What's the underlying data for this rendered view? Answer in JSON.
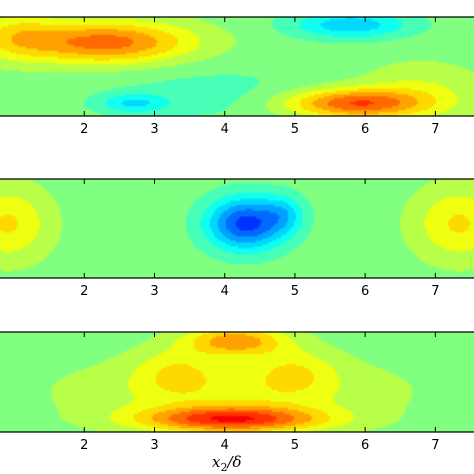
{
  "chart_data": [
    {
      "type": "heatmap",
      "panel": 1,
      "x_ticks": [
        "2",
        "3",
        "4",
        "5",
        "6",
        "7"
      ],
      "x_tick_values": [
        2,
        3,
        4,
        5,
        6,
        7
      ],
      "xlim": [
        0.8,
        7.55
      ],
      "xlabel": "",
      "colormap": "jet",
      "features": [
        {
          "x": 2.3,
          "y": 0.75,
          "value": 0.85,
          "sx": 1.25,
          "sy": 0.22
        },
        {
          "x": 1.0,
          "y": 0.82,
          "value": 0.35,
          "sx": 0.6,
          "sy": 0.25
        },
        {
          "x": 5.85,
          "y": 0.12,
          "value": 0.9,
          "sx": 1.0,
          "sy": 0.15
        },
        {
          "x": 6.8,
          "y": 0.25,
          "value": 0.25,
          "sx": 0.9,
          "sy": 0.3
        },
        {
          "x": 5.8,
          "y": 0.93,
          "value": -0.55,
          "sx": 0.85,
          "sy": 0.14
        },
        {
          "x": 2.7,
          "y": 0.12,
          "value": -0.4,
          "sx": 0.5,
          "sy": 0.1
        },
        {
          "x": 3.8,
          "y": 0.22,
          "value": -0.15,
          "sx": 1.5,
          "sy": 0.3
        }
      ]
    },
    {
      "type": "heatmap",
      "panel": 2,
      "x_ticks": [
        "2",
        "3",
        "4",
        "5",
        "6",
        "7"
      ],
      "x_tick_values": [
        2,
        3,
        4,
        5,
        6,
        7
      ],
      "xlim": [
        0.8,
        7.55
      ],
      "xlabel": "",
      "colormap": "jet",
      "features": [
        {
          "x": 4.3,
          "y": 0.55,
          "value": -1.0,
          "sx": 0.55,
          "sy": 0.27
        },
        {
          "x": 4.85,
          "y": 0.65,
          "value": -0.35,
          "sx": 0.3,
          "sy": 0.2
        },
        {
          "x": 0.9,
          "y": 0.55,
          "value": 0.45,
          "sx": 0.6,
          "sy": 0.38
        },
        {
          "x": 7.35,
          "y": 0.55,
          "value": 0.45,
          "sx": 0.65,
          "sy": 0.38
        }
      ]
    },
    {
      "type": "heatmap",
      "panel": 3,
      "x_ticks": [
        "2",
        "3",
        "4",
        "5",
        "6",
        "7"
      ],
      "x_tick_values": [
        2,
        3,
        4,
        5,
        6,
        7
      ],
      "xlim": [
        0.8,
        7.55
      ],
      "xlabel": "x2/δ",
      "colormap": "jet",
      "features": [
        {
          "x": 4.1,
          "y": 0.12,
          "value": 1.0,
          "sx": 1.3,
          "sy": 0.13
        },
        {
          "x": 4.15,
          "y": 0.92,
          "value": 0.7,
          "sx": 0.7,
          "sy": 0.15
        },
        {
          "x": 3.3,
          "y": 0.6,
          "value": 0.3,
          "sx": 0.6,
          "sy": 0.25
        },
        {
          "x": 5.0,
          "y": 0.6,
          "value": 0.3,
          "sx": 0.6,
          "sy": 0.25
        },
        {
          "x": 4.1,
          "y": 0.4,
          "value": 0.3,
          "sx": 2.3,
          "sy": 0.35
        }
      ]
    }
  ],
  "xlabel_main": "x",
  "xlabel_sub": "2",
  "xlabel_rest": "/δ"
}
